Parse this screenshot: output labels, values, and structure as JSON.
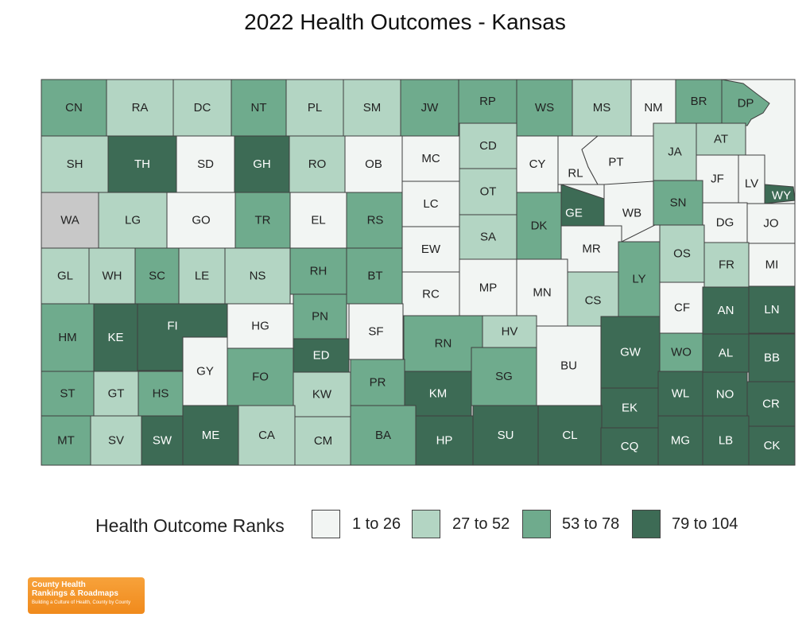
{
  "title": "2022 Health Outcomes - Kansas",
  "legend": {
    "title": "Health Outcome Ranks",
    "items": [
      {
        "label": "1 to 26",
        "color": "#f2f5f3"
      },
      {
        "label": "27 to 52",
        "color": "#b3d5c3"
      },
      {
        "label": "53 to 78",
        "color": "#6fab8d"
      },
      {
        "label": "79 to 104",
        "color": "#3d6b55"
      }
    ],
    "no_data_color": "#c8c8c8"
  },
  "logo": {
    "line1": "County Health",
    "line2": "Rankings & Roadmaps",
    "line3": "Building a Culture of Health, County by County"
  },
  "counties": [
    {
      "code": "CN",
      "tier": 2
    },
    {
      "code": "RA",
      "tier": 1
    },
    {
      "code": "DC",
      "tier": 1
    },
    {
      "code": "NT",
      "tier": 2
    },
    {
      "code": "PL",
      "tier": 1
    },
    {
      "code": "SM",
      "tier": 1
    },
    {
      "code": "JW",
      "tier": 2
    },
    {
      "code": "RP",
      "tier": 2
    },
    {
      "code": "WS",
      "tier": 2
    },
    {
      "code": "MS",
      "tier": 1
    },
    {
      "code": "NM",
      "tier": 0
    },
    {
      "code": "BR",
      "tier": 2
    },
    {
      "code": "DP",
      "tier": 2
    },
    {
      "code": "SH",
      "tier": 1
    },
    {
      "code": "TH",
      "tier": 3
    },
    {
      "code": "SD",
      "tier": 0
    },
    {
      "code": "GH",
      "tier": 3
    },
    {
      "code": "RO",
      "tier": 1
    },
    {
      "code": "OB",
      "tier": 0
    },
    {
      "code": "MC",
      "tier": 0
    },
    {
      "code": "CD",
      "tier": 1
    },
    {
      "code": "CY",
      "tier": 0
    },
    {
      "code": "RL",
      "tier": 0
    },
    {
      "code": "PT",
      "tier": 0
    },
    {
      "code": "JA",
      "tier": 1
    },
    {
      "code": "AT",
      "tier": 1
    },
    {
      "code": "JF",
      "tier": 0
    },
    {
      "code": "LV",
      "tier": 0
    },
    {
      "code": "WY",
      "tier": 3
    },
    {
      "code": "WA",
      "tier": -1
    },
    {
      "code": "LG",
      "tier": 1
    },
    {
      "code": "GO",
      "tier": 0
    },
    {
      "code": "TR",
      "tier": 2
    },
    {
      "code": "EL",
      "tier": 0
    },
    {
      "code": "RS",
      "tier": 2
    },
    {
      "code": "LC",
      "tier": 0
    },
    {
      "code": "OT",
      "tier": 1
    },
    {
      "code": "DK",
      "tier": 2
    },
    {
      "code": "GE",
      "tier": 3
    },
    {
      "code": "WB",
      "tier": 0
    },
    {
      "code": "SN",
      "tier": 2
    },
    {
      "code": "DG",
      "tier": 0
    },
    {
      "code": "JO",
      "tier": 0
    },
    {
      "code": "GL",
      "tier": 1
    },
    {
      "code": "WH",
      "tier": 1
    },
    {
      "code": "SC",
      "tier": 2
    },
    {
      "code": "LE",
      "tier": 1
    },
    {
      "code": "NS",
      "tier": 1
    },
    {
      "code": "RH",
      "tier": 2
    },
    {
      "code": "BT",
      "tier": 2
    },
    {
      "code": "EW",
      "tier": 0
    },
    {
      "code": "SA",
      "tier": 1
    },
    {
      "code": "MR",
      "tier": 0
    },
    {
      "code": "LY",
      "tier": 2
    },
    {
      "code": "OS",
      "tier": 1
    },
    {
      "code": "FR",
      "tier": 1
    },
    {
      "code": "MI",
      "tier": 0
    },
    {
      "code": "HM",
      "tier": 2
    },
    {
      "code": "KE",
      "tier": 3
    },
    {
      "code": "FI",
      "tier": 3
    },
    {
      "code": "HG",
      "tier": 0
    },
    {
      "code": "PN",
      "tier": 2
    },
    {
      "code": "RC",
      "tier": 0
    },
    {
      "code": "MP",
      "tier": 0
    },
    {
      "code": "MN",
      "tier": 0
    },
    {
      "code": "CS",
      "tier": 1
    },
    {
      "code": "CF",
      "tier": 0
    },
    {
      "code": "AN",
      "tier": 3
    },
    {
      "code": "LN",
      "tier": 3
    },
    {
      "code": "ED",
      "tier": 3
    },
    {
      "code": "SF",
      "tier": 0
    },
    {
      "code": "RN",
      "tier": 2
    },
    {
      "code": "HV",
      "tier": 1
    },
    {
      "code": "GW",
      "tier": 3
    },
    {
      "code": "WO",
      "tier": 2
    },
    {
      "code": "AL",
      "tier": 3
    },
    {
      "code": "BB",
      "tier": 3
    },
    {
      "code": "GY",
      "tier": 0
    },
    {
      "code": "FO",
      "tier": 2
    },
    {
      "code": "BU",
      "tier": 0
    },
    {
      "code": "ST",
      "tier": 2
    },
    {
      "code": "GT",
      "tier": 1
    },
    {
      "code": "HS",
      "tier": 2
    },
    {
      "code": "KW",
      "tier": 1
    },
    {
      "code": "PR",
      "tier": 2
    },
    {
      "code": "KM",
      "tier": 3
    },
    {
      "code": "SG",
      "tier": 2
    },
    {
      "code": "EK",
      "tier": 3
    },
    {
      "code": "WL",
      "tier": 3
    },
    {
      "code": "NO",
      "tier": 3
    },
    {
      "code": "CR",
      "tier": 3
    },
    {
      "code": "MT",
      "tier": 2
    },
    {
      "code": "SV",
      "tier": 1
    },
    {
      "code": "SW",
      "tier": 3
    },
    {
      "code": "ME",
      "tier": 3
    },
    {
      "code": "CA",
      "tier": 1
    },
    {
      "code": "CM",
      "tier": 1
    },
    {
      "code": "BA",
      "tier": 2
    },
    {
      "code": "HP",
      "tier": 3
    },
    {
      "code": "SU",
      "tier": 3
    },
    {
      "code": "CL",
      "tier": 3
    },
    {
      "code": "CQ",
      "tier": 3
    },
    {
      "code": "MG",
      "tier": 3
    },
    {
      "code": "LB",
      "tier": 3
    },
    {
      "code": "CK",
      "tier": 3
    }
  ]
}
